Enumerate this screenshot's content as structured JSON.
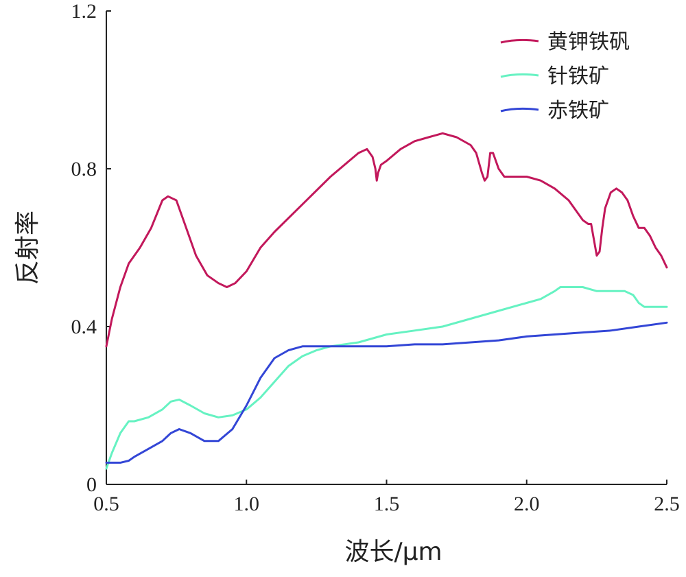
{
  "chart_data": {
    "type": "line",
    "xlabel": "波长/μm",
    "ylabel": "反射率",
    "xlim": [
      0.5,
      2.5
    ],
    "ylim": [
      0,
      1.2
    ],
    "x_ticks": [
      "0.5",
      "1.0",
      "1.5",
      "2.0",
      "2.5"
    ],
    "y_ticks": [
      "0",
      "0.4",
      "0.8",
      "1.2"
    ],
    "grid": false,
    "legend_position": "top-right",
    "series": [
      {
        "name": "黄钾铁矾",
        "color": "#c2185b",
        "x": [
          0.5,
          0.52,
          0.55,
          0.58,
          0.62,
          0.66,
          0.7,
          0.72,
          0.75,
          0.78,
          0.82,
          0.86,
          0.9,
          0.93,
          0.96,
          1.0,
          1.05,
          1.1,
          1.2,
          1.3,
          1.4,
          1.43,
          1.45,
          1.46,
          1.465,
          1.47,
          1.48,
          1.5,
          1.55,
          1.6,
          1.65,
          1.7,
          1.75,
          1.8,
          1.82,
          1.84,
          1.85,
          1.86,
          1.87,
          1.88,
          1.9,
          1.92,
          1.95,
          2.0,
          2.05,
          2.1,
          2.15,
          2.2,
          2.22,
          2.23,
          2.24,
          2.25,
          2.26,
          2.27,
          2.28,
          2.3,
          2.32,
          2.34,
          2.36,
          2.38,
          2.4,
          2.42,
          2.44,
          2.46,
          2.48,
          2.5
        ],
        "values": [
          0.35,
          0.42,
          0.5,
          0.56,
          0.6,
          0.65,
          0.72,
          0.73,
          0.72,
          0.66,
          0.58,
          0.53,
          0.51,
          0.5,
          0.51,
          0.54,
          0.6,
          0.64,
          0.71,
          0.78,
          0.84,
          0.85,
          0.83,
          0.8,
          0.77,
          0.79,
          0.81,
          0.82,
          0.85,
          0.87,
          0.88,
          0.89,
          0.88,
          0.86,
          0.84,
          0.79,
          0.77,
          0.78,
          0.84,
          0.84,
          0.8,
          0.78,
          0.78,
          0.78,
          0.77,
          0.75,
          0.72,
          0.67,
          0.66,
          0.66,
          0.62,
          0.58,
          0.59,
          0.65,
          0.7,
          0.74,
          0.75,
          0.74,
          0.72,
          0.68,
          0.65,
          0.65,
          0.63,
          0.6,
          0.58,
          0.55
        ]
      },
      {
        "name": "针铁矿",
        "color": "#66f2c2",
        "x": [
          0.5,
          0.52,
          0.55,
          0.58,
          0.6,
          0.65,
          0.7,
          0.73,
          0.76,
          0.8,
          0.85,
          0.9,
          0.95,
          1.0,
          1.05,
          1.1,
          1.15,
          1.2,
          1.25,
          1.3,
          1.4,
          1.5,
          1.6,
          1.7,
          1.8,
          1.9,
          2.0,
          2.05,
          2.1,
          2.12,
          2.15,
          2.2,
          2.25,
          2.3,
          2.35,
          2.38,
          2.4,
          2.42,
          2.45,
          2.48,
          2.5
        ],
        "values": [
          0.04,
          0.08,
          0.13,
          0.16,
          0.16,
          0.17,
          0.19,
          0.21,
          0.215,
          0.2,
          0.18,
          0.17,
          0.175,
          0.19,
          0.22,
          0.26,
          0.3,
          0.325,
          0.34,
          0.35,
          0.36,
          0.38,
          0.39,
          0.4,
          0.42,
          0.44,
          0.46,
          0.47,
          0.49,
          0.5,
          0.5,
          0.5,
          0.49,
          0.49,
          0.49,
          0.48,
          0.46,
          0.45,
          0.45,
          0.45,
          0.45
        ]
      },
      {
        "name": "赤铁矿",
        "color": "#3346d6",
        "x": [
          0.5,
          0.55,
          0.58,
          0.6,
          0.65,
          0.7,
          0.73,
          0.76,
          0.8,
          0.85,
          0.9,
          0.95,
          1.0,
          1.05,
          1.1,
          1.15,
          1.2,
          1.25,
          1.3,
          1.4,
          1.5,
          1.6,
          1.7,
          1.8,
          1.9,
          2.0,
          2.1,
          2.2,
          2.3,
          2.4,
          2.5
        ],
        "values": [
          0.055,
          0.055,
          0.06,
          0.07,
          0.09,
          0.11,
          0.13,
          0.14,
          0.13,
          0.11,
          0.11,
          0.14,
          0.2,
          0.27,
          0.32,
          0.34,
          0.35,
          0.35,
          0.35,
          0.35,
          0.35,
          0.355,
          0.355,
          0.36,
          0.365,
          0.375,
          0.38,
          0.385,
          0.39,
          0.4,
          0.41
        ]
      }
    ]
  }
}
